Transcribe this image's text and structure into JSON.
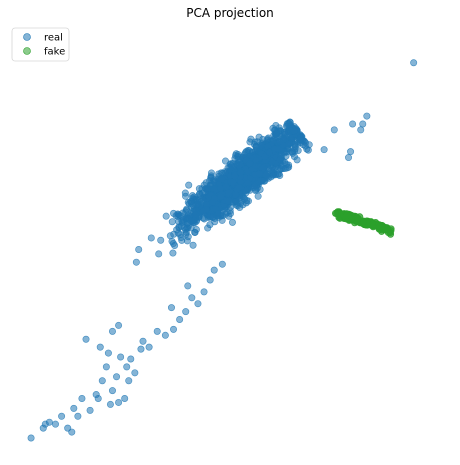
{
  "chart_data": {
    "type": "scatter",
    "title": "PCA projection",
    "xlabel": "",
    "ylabel": "",
    "axes_visible": false,
    "grid": false,
    "legend_position": "top-left",
    "legend": [
      "real",
      "fake"
    ],
    "xlim": [
      -10,
      10
    ],
    "ylim": [
      -10,
      10
    ],
    "series": [
      {
        "name": "real",
        "color": "#1f77b4",
        "alpha": 0.55,
        "cluster": {
          "count": 1600,
          "center": [
            0.6,
            3.2
          ],
          "major_sd": 1.8,
          "minor_sd": 0.42,
          "angle_deg": 40
        },
        "outliers": [
          [
            9.0,
            9.0
          ],
          [
            6.7,
            6.3
          ],
          [
            6.5,
            5.9
          ],
          [
            6.4,
            5.6
          ],
          [
            6.0,
            5.9
          ],
          [
            5.1,
            5.6
          ],
          [
            5.8,
            4.2
          ],
          [
            5.9,
            4.5
          ],
          [
            4.6,
            4.6
          ],
          [
            2.2,
            5.2
          ],
          [
            -7.1,
            -5.0
          ],
          [
            -6.4,
            -5.4
          ],
          [
            -5.8,
            -4.6
          ],
          [
            -5.5,
            -4.3
          ],
          [
            -6.0,
            -5.7
          ],
          [
            -4.9,
            -6.0
          ],
          [
            -4.7,
            -6.7
          ],
          [
            -5.1,
            -6.4
          ],
          [
            -5.0,
            -7.1
          ],
          [
            -6.5,
            -8.0
          ],
          [
            -5.8,
            -7.6
          ],
          [
            -5.2,
            -8.0
          ],
          [
            -5.9,
            -8.3
          ],
          [
            -7.3,
            -8.0
          ],
          [
            -7.7,
            -8.5
          ],
          [
            -8.3,
            -8.9
          ],
          [
            -9.1,
            -9.3
          ],
          [
            -9.2,
            -9.5
          ],
          [
            -8.6,
            -9.3
          ],
          [
            -8.9,
            -9.2
          ],
          [
            -6.6,
            -7.8
          ],
          [
            -6.3,
            -7.1
          ],
          [
            -6.1,
            -6.4
          ],
          [
            -5.6,
            -6.9
          ],
          [
            -5.4,
            -5.9
          ],
          [
            -4.3,
            -5.1
          ],
          [
            -4.0,
            -5.4
          ],
          [
            -3.6,
            -4.6
          ],
          [
            -3.2,
            -4.8
          ],
          [
            -2.8,
            -4.5
          ],
          [
            -2.5,
            -4.0
          ],
          [
            -2.2,
            -3.6
          ],
          [
            -2.9,
            -3.4
          ],
          [
            -1.9,
            -2.9
          ],
          [
            -1.6,
            -3.2
          ],
          [
            -1.3,
            -2.6
          ],
          [
            -2.1,
            -2.3
          ],
          [
            -1.0,
            -2.0
          ],
          [
            -0.8,
            -1.5
          ],
          [
            -0.4,
            -1.2
          ],
          [
            -9.8,
            -10.0
          ],
          [
            -8.0,
            -9.5
          ],
          [
            -7.5,
            -8.9
          ],
          [
            -6.9,
            -8.6
          ],
          [
            -7.8,
            -9.7
          ],
          [
            -5.5,
            -8.2
          ],
          [
            -4.4,
            -5.5
          ]
        ]
      },
      {
        "name": "fake",
        "color": "#2ca02c",
        "alpha": 0.55,
        "band": {
          "count": 160,
          "from": [
            5.2,
            1.4
          ],
          "to": [
            7.9,
            0.5
          ],
          "spread": 0.08
        }
      }
    ]
  }
}
